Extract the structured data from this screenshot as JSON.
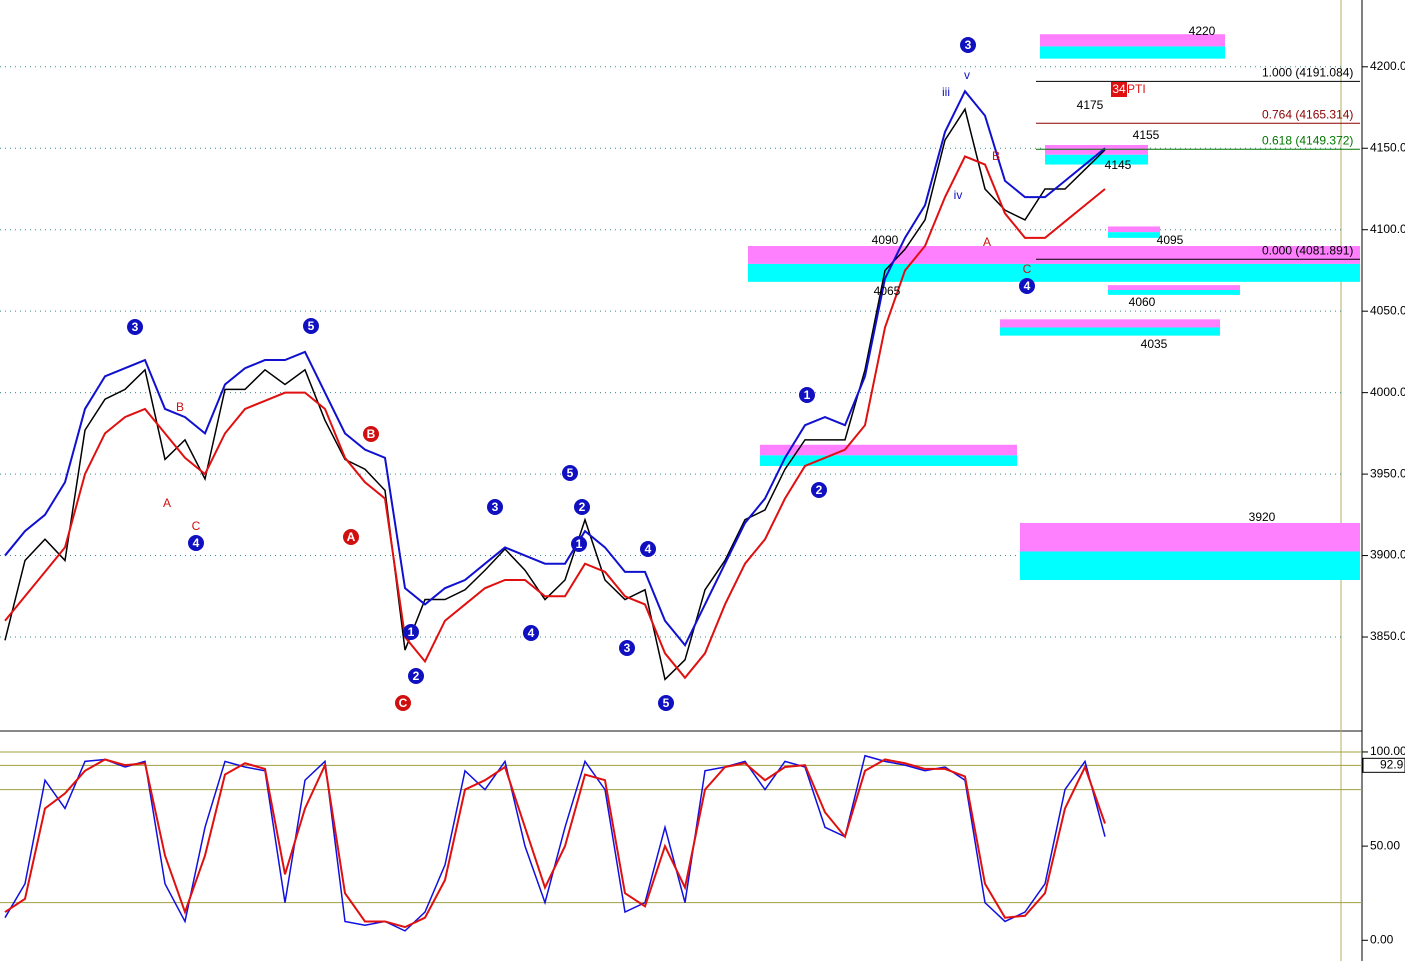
{
  "chart_data": [
    {
      "type": "line",
      "ylim": [
        3796,
        4241
      ],
      "yticks": [
        {
          "value": 4200,
          "label": "4200.0"
        },
        {
          "value": 4150,
          "label": "4150.0"
        },
        {
          "value": 4100,
          "label": "4100.0"
        },
        {
          "value": 4050,
          "label": "4050.0"
        },
        {
          "value": 4000,
          "label": "4000.0"
        },
        {
          "value": 3950,
          "label": "3950.0"
        },
        {
          "value": 3900,
          "label": "3900.0"
        },
        {
          "value": 3850,
          "label": "3850.0"
        }
      ],
      "grid": true,
      "series": [
        {
          "color": "#000000",
          "values": [
            3848,
            3897,
            3910,
            3897,
            3977,
            3996,
            4002,
            4014,
            3959,
            3971,
            3947,
            4002,
            4002,
            4014,
            4005,
            4014,
            3983,
            3959,
            3953,
            3940,
            3842,
            3873,
            3873,
            3879,
            3891,
            3904,
            3891,
            3873,
            3885,
            3922,
            3885,
            3873,
            3879,
            3824,
            3836,
            3879,
            3897,
            3922,
            3928,
            3953,
            3971,
            3971,
            3971,
            4014,
            4075,
            4088,
            4106,
            4155,
            4174,
            4125,
            4112,
            4106,
            4125,
            4125,
            4137,
            4149
          ]
        },
        {
          "color": "#1010d0",
          "values": [
            3900,
            3915,
            3925,
            3945,
            3990,
            4010,
            4015,
            4020,
            3990,
            3985,
            3975,
            4005,
            4015,
            4020,
            4020,
            4025,
            4000,
            3975,
            3965,
            3960,
            3880,
            3870,
            3880,
            3885,
            3895,
            3905,
            3900,
            3895,
            3895,
            3915,
            3905,
            3890,
            3890,
            3860,
            3845,
            3870,
            3895,
            3920,
            3935,
            3960,
            3980,
            3985,
            3980,
            4010,
            4070,
            4095,
            4115,
            4160,
            4185,
            4170,
            4130,
            4120,
            4120,
            4130,
            4140,
            4150
          ]
        },
        {
          "color": "#e01010",
          "values": [
            3860,
            3875,
            3890,
            3905,
            3950,
            3975,
            3985,
            3990,
            3975,
            3960,
            3950,
            3975,
            3990,
            3995,
            4000,
            4000,
            3990,
            3960,
            3945,
            3935,
            3850,
            3835,
            3860,
            3870,
            3880,
            3885,
            3885,
            3875,
            3875,
            3895,
            3890,
            3875,
            3870,
            3840,
            3825,
            3840,
            3870,
            3895,
            3910,
            3935,
            3955,
            3960,
            3965,
            3980,
            4040,
            4075,
            4090,
            4120,
            4145,
            4140,
            4110,
            4095,
            4095,
            4105,
            4115,
            4125
          ]
        }
      ],
      "zones": [
        {
          "low": 4205,
          "high": 4220
        },
        {
          "low": 4068,
          "high": 4090
        },
        {
          "low": 4035,
          "high": 4045
        },
        {
          "low": 3955,
          "high": 3968
        },
        {
          "low": 3885,
          "high": 3920
        },
        {
          "low": 4140,
          "high": 4152
        },
        {
          "low": 4095,
          "high": 4102
        },
        {
          "low": 4060,
          "high": 4066
        }
      ],
      "levels": [
        {
          "value": 4191.084,
          "label": "1.000 (4191.084)",
          "color": "#000000"
        },
        {
          "value": 4165.314,
          "label": "0.764 (4165.314)",
          "color": "#8b0000"
        },
        {
          "value": 4149.372,
          "label": "0.618 (4149.372)",
          "color": "#007700"
        },
        {
          "value": 4081.891,
          "label": "0.000 (4081.891)",
          "color": "#000000"
        }
      ],
      "price_labels": [
        4220,
        4175,
        4155,
        4145,
        4095,
        4090,
        4065,
        4060,
        4035,
        3920
      ],
      "annotations": [
        "34",
        "PTI"
      ],
      "wave_labels": [
        {
          "text": "3",
          "color": "#1010c0",
          "circled": true
        },
        {
          "text": "5",
          "color": "#1010c0",
          "circled": true
        },
        {
          "text": "B",
          "color": "#d01010",
          "circled": true
        },
        {
          "text": "A",
          "color": "#d01010",
          "circled": true
        },
        {
          "text": "C",
          "color": "#d01010",
          "circled": true
        },
        {
          "text": "4",
          "color": "#1010c0",
          "circled": true
        },
        {
          "text": "1",
          "color": "#1010c0",
          "circled": true
        },
        {
          "text": "2",
          "color": "#1010c0",
          "circled": true
        },
        {
          "text": "5",
          "color": "#1010c0",
          "circled": true
        },
        {
          "text": "3",
          "color": "#1010c0",
          "circled": true
        },
        {
          "text": "1",
          "color": "#1010c0",
          "circled": true
        },
        {
          "text": "2",
          "color": "#1010c0",
          "circled": true
        },
        {
          "text": "4",
          "color": "#1010c0",
          "circled": true
        },
        {
          "text": "3",
          "color": "#1010c0",
          "circled": true
        },
        {
          "text": "4",
          "color": "#1010c0",
          "circled": true
        },
        {
          "text": "5",
          "color": "#1010c0",
          "circled": true
        },
        {
          "text": "1",
          "color": "#1010c0",
          "circled": true
        },
        {
          "text": "2",
          "color": "#1010c0",
          "circled": true
        },
        {
          "text": "3",
          "color": "#1010c0",
          "circled": true
        },
        {
          "text": "4",
          "color": "#1010c0",
          "circled": true
        },
        {
          "text": "A",
          "color": "#d01010",
          "circled": false
        },
        {
          "text": "C",
          "color": "#d01010",
          "circled": false
        },
        {
          "text": "B",
          "color": "#d01010",
          "circled": false
        },
        {
          "text": "A",
          "color": "#d01010",
          "circled": false
        },
        {
          "text": "B",
          "color": "#d01010",
          "circled": false
        },
        {
          "text": "C",
          "color": "#d01010",
          "circled": false
        },
        {
          "text": "iii",
          "color": "#1010c0",
          "circled": false
        },
        {
          "text": "iv",
          "color": "#1010c0",
          "circled": false
        },
        {
          "text": "v",
          "color": "#1010c0",
          "circled": false
        }
      ]
    },
    {
      "type": "line",
      "ylim": [
        -11,
        109
      ],
      "yticks": [
        {
          "value": 100,
          "label": "100.00"
        },
        {
          "value": 50,
          "label": "50.00"
        },
        {
          "value": 0,
          "label": "0.00"
        }
      ],
      "hlines": [
        100,
        92.9,
        80,
        20
      ],
      "series": [
        {
          "color": "#1010e0",
          "values": [
            12,
            30,
            85,
            70,
            95,
            96,
            92,
            95,
            30,
            10,
            60,
            95,
            92,
            90,
            20,
            85,
            95,
            10,
            8,
            10,
            5,
            15,
            40,
            90,
            80,
            95,
            50,
            20,
            60,
            95,
            80,
            15,
            20,
            60,
            20,
            90,
            92,
            95,
            80,
            95,
            92,
            60,
            55,
            98,
            95,
            93,
            90,
            92,
            85,
            20,
            10,
            15,
            30,
            80,
            95,
            55
          ]
        },
        {
          "color": "#e01010",
          "values": [
            15,
            22,
            70,
            78,
            90,
            96,
            93,
            94,
            45,
            15,
            45,
            88,
            94,
            91,
            35,
            70,
            93,
            25,
            10,
            10,
            7,
            12,
            32,
            80,
            85,
            92,
            60,
            28,
            50,
            88,
            85,
            25,
            18,
            50,
            28,
            80,
            92,
            94,
            85,
            92,
            93,
            68,
            55,
            90,
            96,
            94,
            91,
            91,
            87,
            30,
            12,
            13,
            25,
            70,
            92,
            62
          ]
        }
      ]
    }
  ]
}
